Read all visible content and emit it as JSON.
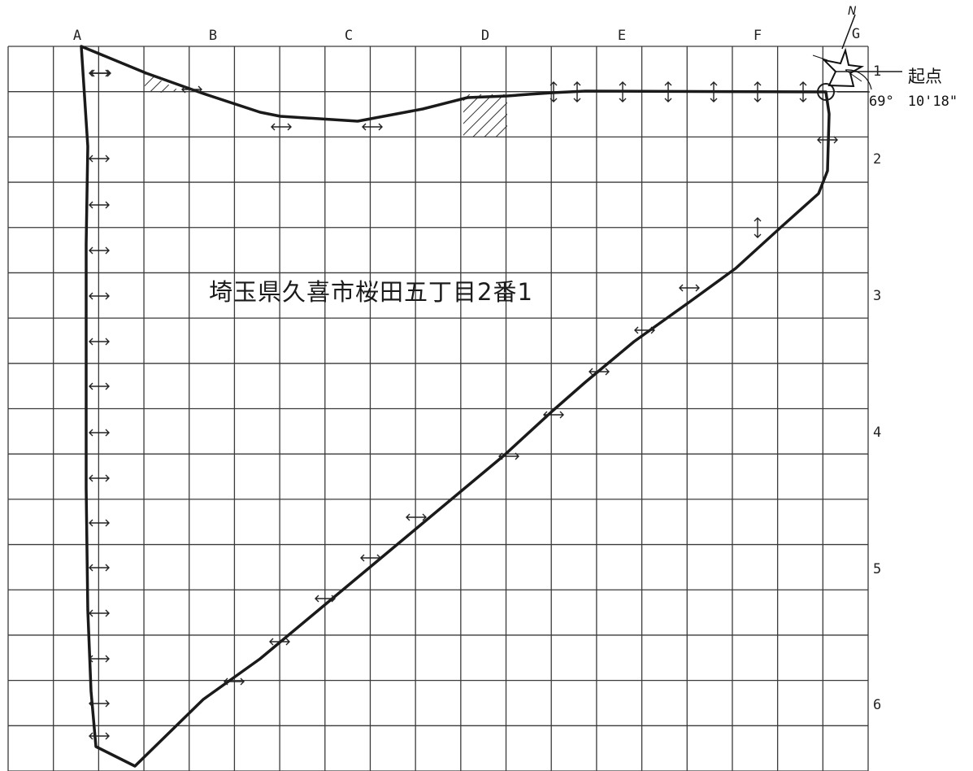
{
  "survey_map": {
    "address_title": "埼玉県久喜市桜田五丁目2番1",
    "start_point_label": "起点",
    "angle_label": "69°　10'18\"",
    "north_letter": "N",
    "column_labels": [
      "A",
      "B",
      "C",
      "D",
      "E",
      "F",
      "G"
    ],
    "row_labels": [
      "1",
      "2",
      "3",
      "4",
      "5",
      "6"
    ],
    "colors": {
      "grid": "#3a3a3a",
      "boundary": "#1a1a1a",
      "hatch": "#333333",
      "text": "#222222"
    }
  }
}
